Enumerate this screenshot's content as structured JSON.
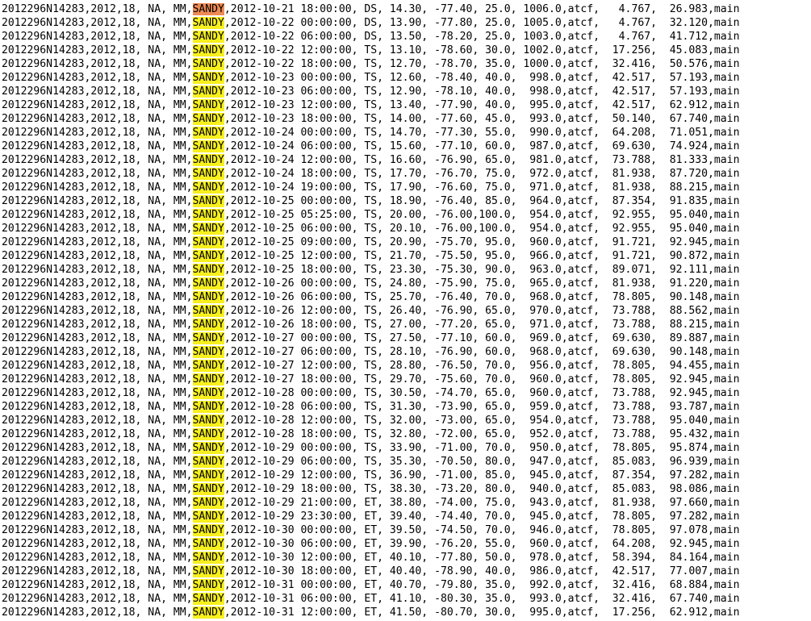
{
  "highlight_colors": {
    "match": "#f7f01e",
    "current_match": "#ee8a55"
  },
  "rows": [
    {
      "pre": "2012296N14283,2012,18, NA, MM,",
      "name": "SANDY",
      "post": ",2012-10-21 18:00:00, DS, 14.30, -77.40, 25.0, 1006.0,atcf,   4.767,  26.983,main"
    },
    {
      "pre": "2012296N14283,2012,18, NA, MM,",
      "name": "SANDY",
      "post": ",2012-10-22 00:00:00, DS, 13.90, -77.80, 25.0, 1005.0,atcf,   4.767,  32.120,main"
    },
    {
      "pre": "2012296N14283,2012,18, NA, MM,",
      "name": "SANDY",
      "post": ",2012-10-22 06:00:00, DS, 13.50, -78.20, 25.0, 1003.0,atcf,   4.767,  41.712,main"
    },
    {
      "pre": "2012296N14283,2012,18, NA, MM,",
      "name": "SANDY",
      "post": ",2012-10-22 12:00:00, TS, 13.10, -78.60, 30.0, 1002.0,atcf,  17.256,  45.083,main"
    },
    {
      "pre": "2012296N14283,2012,18, NA, MM,",
      "name": "SANDY",
      "post": ",2012-10-22 18:00:00, TS, 12.70, -78.70, 35.0, 1000.0,atcf,  32.416,  50.576,main"
    },
    {
      "pre": "2012296N14283,2012,18, NA, MM,",
      "name": "SANDY",
      "post": ",2012-10-23 00:00:00, TS, 12.60, -78.40, 40.0,  998.0,atcf,  42.517,  57.193,main"
    },
    {
      "pre": "2012296N14283,2012,18, NA, MM,",
      "name": "SANDY",
      "post": ",2012-10-23 06:00:00, TS, 12.90, -78.10, 40.0,  998.0,atcf,  42.517,  57.193,main"
    },
    {
      "pre": "2012296N14283,2012,18, NA, MM,",
      "name": "SANDY",
      "post": ",2012-10-23 12:00:00, TS, 13.40, -77.90, 40.0,  995.0,atcf,  42.517,  62.912,main"
    },
    {
      "pre": "2012296N14283,2012,18, NA, MM,",
      "name": "SANDY",
      "post": ",2012-10-23 18:00:00, TS, 14.00, -77.60, 45.0,  993.0,atcf,  50.140,  67.740,main"
    },
    {
      "pre": "2012296N14283,2012,18, NA, MM,",
      "name": "SANDY",
      "post": ",2012-10-24 00:00:00, TS, 14.70, -77.30, 55.0,  990.0,atcf,  64.208,  71.051,main"
    },
    {
      "pre": "2012296N14283,2012,18, NA, MM,",
      "name": "SANDY",
      "post": ",2012-10-24 06:00:00, TS, 15.60, -77.10, 60.0,  987.0,atcf,  69.630,  74.924,main"
    },
    {
      "pre": "2012296N14283,2012,18, NA, MM,",
      "name": "SANDY",
      "post": ",2012-10-24 12:00:00, TS, 16.60, -76.90, 65.0,  981.0,atcf,  73.788,  81.333,main"
    },
    {
      "pre": "2012296N14283,2012,18, NA, MM,",
      "name": "SANDY",
      "post": ",2012-10-24 18:00:00, TS, 17.70, -76.70, 75.0,  972.0,atcf,  81.938,  87.720,main"
    },
    {
      "pre": "2012296N14283,2012,18, NA, MM,",
      "name": "SANDY",
      "post": ",2012-10-24 19:00:00, TS, 17.90, -76.60, 75.0,  971.0,atcf,  81.938,  88.215,main"
    },
    {
      "pre": "2012296N14283,2012,18, NA, MM,",
      "name": "SANDY",
      "post": ",2012-10-25 00:00:00, TS, 18.90, -76.40, 85.0,  964.0,atcf,  87.354,  91.835,main"
    },
    {
      "pre": "2012296N14283,2012,18, NA, MM,",
      "name": "SANDY",
      "post": ",2012-10-25 05:25:00, TS, 20.00, -76.00,100.0,  954.0,atcf,  92.955,  95.040,main"
    },
    {
      "pre": "2012296N14283,2012,18, NA, MM,",
      "name": "SANDY",
      "post": ",2012-10-25 06:00:00, TS, 20.10, -76.00,100.0,  954.0,atcf,  92.955,  95.040,main"
    },
    {
      "pre": "2012296N14283,2012,18, NA, MM,",
      "name": "SANDY",
      "post": ",2012-10-25 09:00:00, TS, 20.90, -75.70, 95.0,  960.0,atcf,  91.721,  92.945,main"
    },
    {
      "pre": "2012296N14283,2012,18, NA, MM,",
      "name": "SANDY",
      "post": ",2012-10-25 12:00:00, TS, 21.70, -75.50, 95.0,  966.0,atcf,  91.721,  90.872,main"
    },
    {
      "pre": "2012296N14283,2012,18, NA, MM,",
      "name": "SANDY",
      "post": ",2012-10-25 18:00:00, TS, 23.30, -75.30, 90.0,  963.0,atcf,  89.071,  92.111,main"
    },
    {
      "pre": "2012296N14283,2012,18, NA, MM,",
      "name": "SANDY",
      "post": ",2012-10-26 00:00:00, TS, 24.80, -75.90, 75.0,  965.0,atcf,  81.938,  91.220,main"
    },
    {
      "pre": "2012296N14283,2012,18, NA, MM,",
      "name": "SANDY",
      "post": ",2012-10-26 06:00:00, TS, 25.70, -76.40, 70.0,  968.0,atcf,  78.805,  90.148,main"
    },
    {
      "pre": "2012296N14283,2012,18, NA, MM,",
      "name": "SANDY",
      "post": ",2012-10-26 12:00:00, TS, 26.40, -76.90, 65.0,  970.0,atcf,  73.788,  88.562,main"
    },
    {
      "pre": "2012296N14283,2012,18, NA, MM,",
      "name": "SANDY",
      "post": ",2012-10-26 18:00:00, TS, 27.00, -77.20, 65.0,  971.0,atcf,  73.788,  88.215,main"
    },
    {
      "pre": "2012296N14283,2012,18, NA, MM,",
      "name": "SANDY",
      "post": ",2012-10-27 00:00:00, TS, 27.50, -77.10, 60.0,  969.0,atcf,  69.630,  89.887,main"
    },
    {
      "pre": "2012296N14283,2012,18, NA, MM,",
      "name": "SANDY",
      "post": ",2012-10-27 06:00:00, TS, 28.10, -76.90, 60.0,  968.0,atcf,  69.630,  90.148,main"
    },
    {
      "pre": "2012296N14283,2012,18, NA, MM,",
      "name": "SANDY",
      "post": ",2012-10-27 12:00:00, TS, 28.80, -76.50, 70.0,  956.0,atcf,  78.805,  94.455,main"
    },
    {
      "pre": "2012296N14283,2012,18, NA, MM,",
      "name": "SANDY",
      "post": ",2012-10-27 18:00:00, TS, 29.70, -75.60, 70.0,  960.0,atcf,  78.805,  92.945,main"
    },
    {
      "pre": "2012296N14283,2012,18, NA, MM,",
      "name": "SANDY",
      "post": ",2012-10-28 00:00:00, TS, 30.50, -74.70, 65.0,  960.0,atcf,  73.788,  92.945,main"
    },
    {
      "pre": "2012296N14283,2012,18, NA, MM,",
      "name": "SANDY",
      "post": ",2012-10-28 06:00:00, TS, 31.30, -73.90, 65.0,  959.0,atcf,  73.788,  93.787,main"
    },
    {
      "pre": "2012296N14283,2012,18, NA, MM,",
      "name": "SANDY",
      "post": ",2012-10-28 12:00:00, TS, 32.00, -73.00, 65.0,  954.0,atcf,  73.788,  95.040,main"
    },
    {
      "pre": "2012296N14283,2012,18, NA, MM,",
      "name": "SANDY",
      "post": ",2012-10-28 18:00:00, TS, 32.80, -72.00, 65.0,  952.0,atcf,  73.788,  95.432,main"
    },
    {
      "pre": "2012296N14283,2012,18, NA, MM,",
      "name": "SANDY",
      "post": ",2012-10-29 00:00:00, TS, 33.90, -71.00, 70.0,  950.0,atcf,  78.805,  95.874,main"
    },
    {
      "pre": "2012296N14283,2012,18, NA, MM,",
      "name": "SANDY",
      "post": ",2012-10-29 06:00:00, TS, 35.30, -70.50, 80.0,  947.0,atcf,  85.083,  96.939,main"
    },
    {
      "pre": "2012296N14283,2012,18, NA, MM,",
      "name": "SANDY",
      "post": ",2012-10-29 12:00:00, TS, 36.90, -71.00, 85.0,  945.0,atcf,  87.354,  97.282,main"
    },
    {
      "pre": "2012296N14283,2012,18, NA, MM,",
      "name": "SANDY",
      "post": ",2012-10-29 18:00:00, TS, 38.30, -73.20, 80.0,  940.0,atcf,  85.083,  98.086,main"
    },
    {
      "pre": "2012296N14283,2012,18, NA, MM,",
      "name": "SANDY",
      "post": ",2012-10-29 21:00:00, ET, 38.80, -74.00, 75.0,  943.0,atcf,  81.938,  97.660,main"
    },
    {
      "pre": "2012296N14283,2012,18, NA, MM,",
      "name": "SANDY",
      "post": ",2012-10-29 23:30:00, ET, 39.40, -74.40, 70.0,  945.0,atcf,  78.805,  97.282,main"
    },
    {
      "pre": "2012296N14283,2012,18, NA, MM,",
      "name": "SANDY",
      "post": ",2012-10-30 00:00:00, ET, 39.50, -74.50, 70.0,  946.0,atcf,  78.805,  97.078,main"
    },
    {
      "pre": "2012296N14283,2012,18, NA, MM,",
      "name": "SANDY",
      "post": ",2012-10-30 06:00:00, ET, 39.90, -76.20, 55.0,  960.0,atcf,  64.208,  92.945,main"
    },
    {
      "pre": "2012296N14283,2012,18, NA, MM,",
      "name": "SANDY",
      "post": ",2012-10-30 12:00:00, ET, 40.10, -77.80, 50.0,  978.0,atcf,  58.394,  84.164,main"
    },
    {
      "pre": "2012296N14283,2012,18, NA, MM,",
      "name": "SANDY",
      "post": ",2012-10-30 18:00:00, ET, 40.40, -78.90, 40.0,  986.0,atcf,  42.517,  77.007,main"
    },
    {
      "pre": "2012296N14283,2012,18, NA, MM,",
      "name": "SANDY",
      "post": ",2012-10-31 00:00:00, ET, 40.70, -79.80, 35.0,  992.0,atcf,  32.416,  68.884,main"
    },
    {
      "pre": "2012296N14283,2012,18, NA, MM,",
      "name": "SANDY",
      "post": ",2012-10-31 06:00:00, ET, 41.10, -80.30, 35.0,  993.0,atcf,  32.416,  67.740,main"
    },
    {
      "pre": "2012296N14283,2012,18, NA, MM,",
      "name": "SANDY",
      "post": ",2012-10-31 12:00:00, ET, 41.50, -80.70, 30.0,  995.0,atcf,  17.256,  62.912,main"
    }
  ]
}
